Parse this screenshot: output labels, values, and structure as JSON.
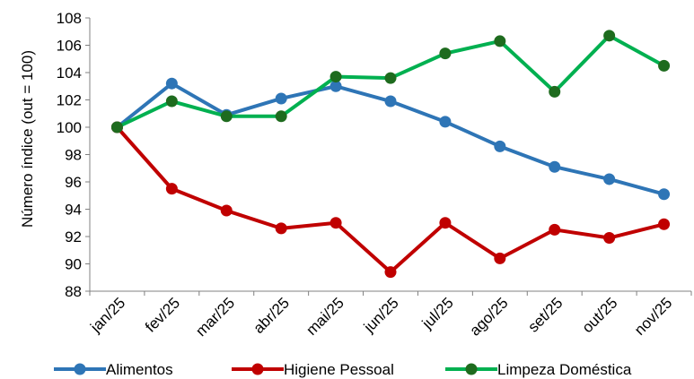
{
  "chart_data": {
    "type": "line",
    "categories": [
      "jan/25",
      "fev/25",
      "mar/25",
      "abr/25",
      "mai/25",
      "jun/25",
      "jul/25",
      "ago/25",
      "set/25",
      "out/25",
      "nov/25"
    ],
    "series": [
      {
        "name": "Alimentos",
        "color": "#2E75B6",
        "values": [
          100.0,
          103.2,
          100.9,
          102.1,
          103.0,
          101.9,
          100.4,
          98.6,
          97.1,
          96.2,
          95.1
        ]
      },
      {
        "name": "Higiene Pessoal",
        "color": "#C00000",
        "values": [
          100.0,
          95.5,
          93.9,
          92.6,
          93.0,
          89.4,
          93.0,
          90.4,
          92.5,
          91.9,
          92.9
        ]
      },
      {
        "name": "Limpeza Doméstica",
        "color": "#00B050",
        "marker_color": "#1E6B1E",
        "values": [
          100.0,
          101.9,
          100.8,
          100.8,
          103.7,
          103.6,
          105.4,
          106.3,
          102.6,
          106.7,
          104.5
        ]
      }
    ],
    "ylabel": "Número índice (out = 100)",
    "xlabel": "",
    "ylim": [
      88,
      108
    ],
    "yticks": [
      "88",
      "90",
      "92",
      "94",
      "96",
      "98",
      "100",
      "102",
      "104",
      "106",
      "108"
    ],
    "grid": false,
    "legend": "bottom"
  }
}
